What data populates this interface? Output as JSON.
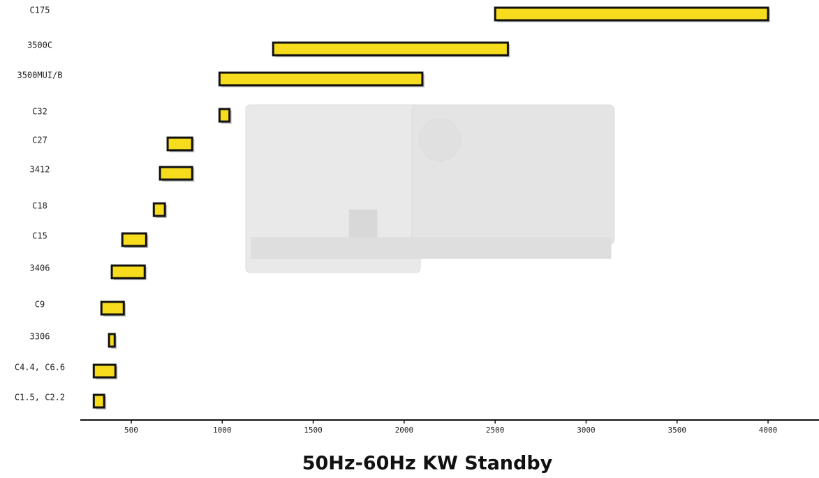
{
  "chart_data": {
    "type": "range_bar",
    "title": "50Hz-60Hz KW Standby",
    "categories": [
      "C175",
      "3500C",
      "3500MUI/B",
      "C32",
      "C27",
      "3412",
      "C18",
      "C15",
      "3406",
      "C9",
      "3306",
      "C4.4, C6.6",
      "C1.5, C2.2"
    ],
    "low": [
      2500,
      1280,
      985,
      985,
      700,
      658,
      624,
      451,
      393,
      336,
      378,
      294,
      294
    ],
    "high": [
      4000,
      2570,
      2100,
      1040,
      835,
      835,
      685,
      582,
      574,
      459,
      409,
      413,
      351
    ],
    "color": "#f7dc1e",
    "xlim": [
      220,
      4280
    ],
    "xticks": [
      500,
      1000,
      1500,
      2000,
      2500,
      3000,
      3500,
      4000
    ]
  }
}
